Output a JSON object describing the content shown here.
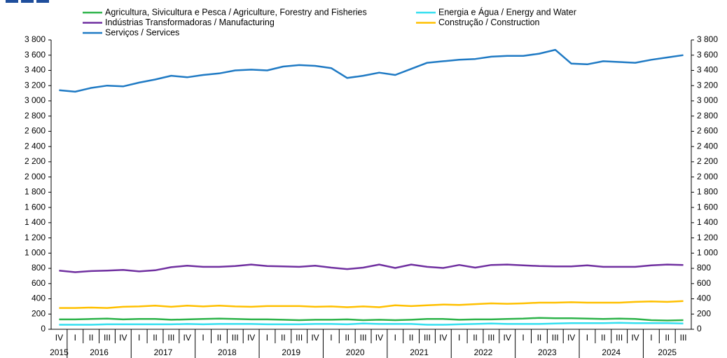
{
  "chart_data": {
    "type": "line",
    "categories": [
      "IV",
      "I",
      "II",
      "III",
      "IV",
      "I",
      "II",
      "III",
      "IV",
      "I",
      "II",
      "III",
      "IV",
      "I",
      "II",
      "III",
      "IV",
      "I",
      "II",
      "III",
      "IV",
      "I",
      "II",
      "III",
      "IV",
      "I",
      "II",
      "III",
      "IV",
      "I",
      "II",
      "III",
      "IV",
      "I",
      "II",
      "III",
      "IV",
      "I",
      "II",
      "III"
    ],
    "years": [
      "2015",
      "2016",
      "2017",
      "2018",
      "2019",
      "2020",
      "2021",
      "2022",
      "2023",
      "2024",
      "2025"
    ],
    "series": [
      {
        "name": "Agricultura, Sivicultura e Pesca / Agriculture, Forestry and Fisheries",
        "color": "#2db34a",
        "values": [
          130,
          130,
          135,
          140,
          130,
          135,
          135,
          125,
          130,
          135,
          140,
          135,
          130,
          130,
          125,
          120,
          125,
          125,
          130,
          120,
          125,
          120,
          125,
          135,
          135,
          125,
          130,
          130,
          135,
          140,
          150,
          145,
          145,
          140,
          135,
          140,
          135,
          120,
          115,
          120
        ]
      },
      {
        "name": "Energia e Água / Energy and Water",
        "color": "#33dff0",
        "values": [
          60,
          60,
          60,
          65,
          65,
          65,
          65,
          65,
          70,
          65,
          70,
          70,
          70,
          65,
          65,
          65,
          70,
          70,
          65,
          75,
          70,
          70,
          70,
          60,
          60,
          65,
          70,
          75,
          70,
          70,
          70,
          75,
          80,
          80,
          80,
          85,
          80,
          80,
          80,
          75
        ]
      },
      {
        "name": "Indústrias Transformadoras / Manufacturing",
        "color": "#7030a0",
        "values": [
          770,
          750,
          765,
          770,
          780,
          760,
          775,
          815,
          835,
          820,
          820,
          830,
          850,
          830,
          825,
          820,
          835,
          810,
          790,
          810,
          850,
          805,
          850,
          820,
          805,
          845,
          810,
          845,
          850,
          840,
          830,
          825,
          825,
          840,
          820,
          820,
          820,
          840,
          850,
          845
        ]
      },
      {
        "name": "Construção / Construction",
        "color": "#ffc000",
        "values": [
          280,
          280,
          285,
          280,
          295,
          300,
          310,
          295,
          310,
          300,
          310,
          300,
          295,
          305,
          305,
          305,
          295,
          300,
          290,
          300,
          290,
          315,
          305,
          315,
          325,
          320,
          330,
          340,
          335,
          340,
          350,
          350,
          355,
          350,
          350,
          350,
          360,
          365,
          360,
          370
        ]
      },
      {
        "name": "Serviços / Services",
        "color": "#1f7ac4",
        "values": [
          3140,
          3120,
          3170,
          3200,
          3190,
          3240,
          3280,
          3330,
          3310,
          3340,
          3360,
          3400,
          3410,
          3400,
          3450,
          3470,
          3460,
          3430,
          3300,
          3330,
          3370,
          3340,
          3420,
          3500,
          3520,
          3540,
          3550,
          3580,
          3590,
          3590,
          3620,
          3670,
          3490,
          3480,
          3520,
          3510,
          3500,
          3540,
          3570,
          3600
        ]
      }
    ],
    "ylim": [
      0,
      3800
    ],
    "yticks": [
      0,
      200,
      400,
      600,
      800,
      {
        "value": 1000,
        "label": "1 000"
      },
      {
        "value": 1200,
        "label": "1 200"
      },
      {
        "value": 1400,
        "label": "1 400"
      },
      {
        "value": 1600,
        "label": "1 600"
      },
      {
        "value": 1800,
        "label": "1 800"
      },
      {
        "value": 2000,
        "label": "2 000"
      },
      {
        "value": 2200,
        "label": "2 200"
      },
      {
        "value": 2400,
        "label": "2 400"
      },
      {
        "value": 2600,
        "label": "2 600"
      },
      {
        "value": 2800,
        "label": "2 800"
      },
      {
        "value": 3000,
        "label": "3 000"
      },
      {
        "value": 3200,
        "label": "3 200"
      },
      {
        "value": 3400,
        "label": "3 400"
      },
      {
        "value": 3600,
        "label": "3 600"
      },
      {
        "value": 3800,
        "label": "3 800"
      }
    ],
    "y2lim": [
      0,
      3800
    ],
    "y2ticks": [
      0,
      200,
      400,
      600,
      800,
      {
        "value": 1000,
        "label": "1 000"
      },
      {
        "value": 1200,
        "label": "1 200"
      },
      {
        "value": 1400,
        "label": "1 400"
      },
      {
        "value": 1600,
        "label": "1 600"
      },
      {
        "value": 1800,
        "label": "1 800"
      },
      {
        "value": 2000,
        "label": "2 000"
      },
      {
        "value": 2200,
        "label": "2 200"
      },
      {
        "value": 2400,
        "label": "2 400"
      },
      {
        "value": 2600,
        "label": "2 600"
      },
      {
        "value": 2800,
        "label": "2 800"
      },
      {
        "value": 3000,
        "label": "3 000"
      },
      {
        "value": 3200,
        "label": "3 200"
      },
      {
        "value": 3400,
        "label": "3 400"
      },
      {
        "value": 3600,
        "label": "3 600"
      },
      {
        "value": 3800,
        "label": "3 800"
      }
    ],
    "grid": false
  }
}
